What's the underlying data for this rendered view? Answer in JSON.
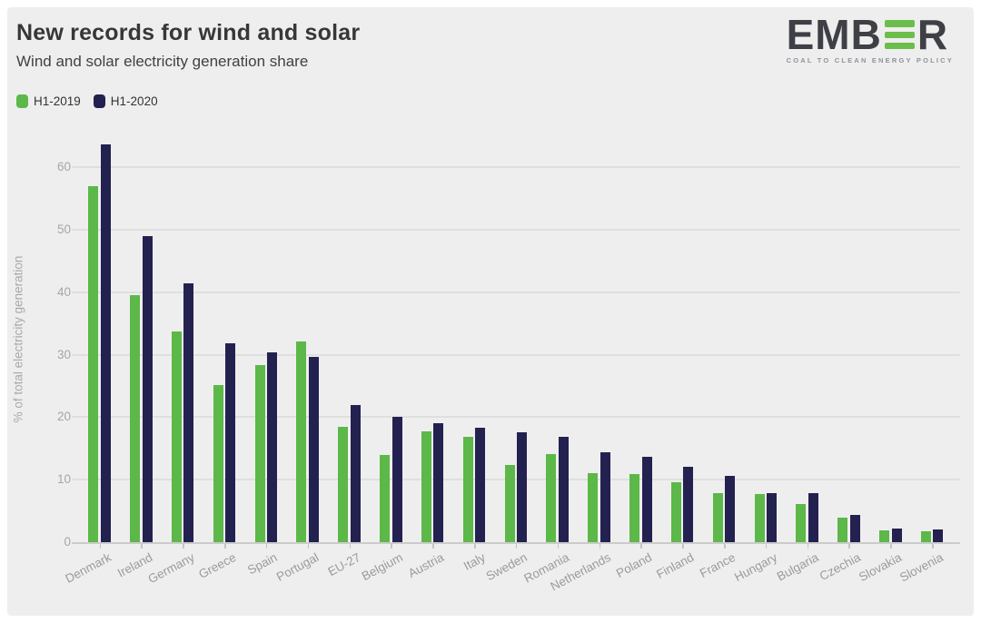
{
  "logo": {
    "text_left": "EMB",
    "text_right": "R",
    "tagline": "COAL TO CLEAN ENERGY POLICY",
    "green": "#6bbe4b",
    "dark": "#3e4046"
  },
  "colors": {
    "card_background": "#efeeee",
    "page_border": "#ffffff",
    "gridline": "#e0dfdf",
    "axis": "#cccbcb",
    "tick_text": "#a6a6a6",
    "title_text": "#373737"
  },
  "chart_data": {
    "type": "bar",
    "title": "New records for wind and solar",
    "subtitle": "Wind and solar electricity generation share",
    "categories": [
      "Denmark",
      "Ireland",
      "Germany",
      "Greece",
      "Spain",
      "Portugal",
      "EU-27",
      "Belgium",
      "Austria",
      "Italy",
      "Sweden",
      "Romania",
      "Netherlands",
      "Poland",
      "Finland",
      "France",
      "Hungary",
      "Bulgaria",
      "Czechia",
      "Slovakia",
      "Slovenia"
    ],
    "series": [
      {
        "name": "H1-2019",
        "color": "#5cb848",
        "values": [
          57,
          39.5,
          33.8,
          25.2,
          28.4,
          32.1,
          18.4,
          14,
          17.7,
          16.9,
          12.4,
          14.1,
          11.1,
          10.9,
          9.6,
          7.9,
          7.7,
          6.1,
          4,
          1.9,
          1.7
        ]
      },
      {
        "name": "H1-2020",
        "color": "#232150",
        "values": [
          63.7,
          49,
          41.5,
          31.8,
          30.4,
          29.6,
          22,
          20,
          19.1,
          18.3,
          17.6,
          16.9,
          14.4,
          13.7,
          12,
          10.6,
          7.9,
          7.8,
          4.4,
          2.2,
          2.1
        ]
      }
    ],
    "xlabel": "",
    "ylabel": "% of total electricity generation",
    "yticks": [
      0,
      10,
      20,
      30,
      40,
      50,
      60
    ],
    "ylim": [
      0,
      65
    ],
    "grid": true,
    "legend_position": "top-left"
  }
}
